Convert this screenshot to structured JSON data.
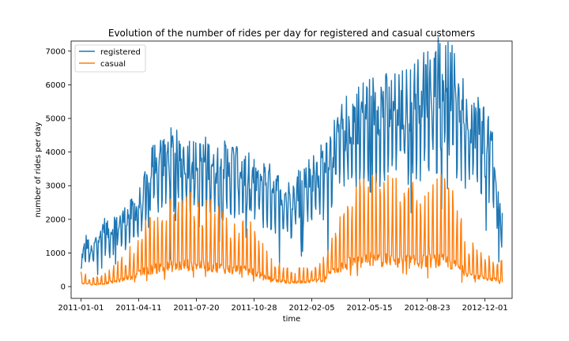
{
  "chart_data": {
    "type": "line",
    "title": "Evolution of the number of rides per day for registered and casual customers",
    "xlabel": "time",
    "ylabel": "number of rides per day",
    "x_start": "2011-01-01",
    "x_end": "2012-12-31",
    "xlim": [
      "2010-12-15",
      "2013-01-17"
    ],
    "ylim": [
      -350,
      7300
    ],
    "grid": false,
    "legend_position": "upper-left",
    "x_ticks": [
      "2011-01-01",
      "2011-04-11",
      "2011-07-20",
      "2011-10-28",
      "2012-02-05",
      "2012-05-15",
      "2012-08-23",
      "2012-12-01"
    ],
    "y_ticks": [
      0,
      1000,
      2000,
      3000,
      4000,
      5000,
      6000,
      7000
    ],
    "series": [
      {
        "name": "registered",
        "color": "#1f77b4",
        "points": [
          [
            "2011-01-01",
            700
          ],
          [
            "2011-01-10",
            1200
          ],
          [
            "2011-01-20",
            900
          ],
          [
            "2011-01-31",
            1400
          ],
          [
            "2011-02-10",
            1600
          ],
          [
            "2011-02-20",
            1400
          ],
          [
            "2011-03-01",
            1700
          ],
          [
            "2011-03-15",
            1800
          ],
          [
            "2011-03-31",
            2000
          ],
          [
            "2011-04-11",
            2200
          ],
          [
            "2011-04-25",
            2700
          ],
          [
            "2011-05-05",
            3400
          ],
          [
            "2011-05-20",
            3500
          ],
          [
            "2011-06-05",
            3600
          ],
          [
            "2011-06-20",
            3500
          ],
          [
            "2011-07-05",
            3500
          ],
          [
            "2011-07-20",
            3300
          ],
          [
            "2011-08-05",
            3400
          ],
          [
            "2011-08-20",
            3300
          ],
          [
            "2011-09-05",
            3300
          ],
          [
            "2011-09-20",
            3300
          ],
          [
            "2011-10-05",
            3200
          ],
          [
            "2011-10-28",
            2900
          ],
          [
            "2011-11-15",
            2900
          ],
          [
            "2011-12-01",
            2700
          ],
          [
            "2011-12-15",
            2500
          ],
          [
            "2011-12-31",
            2400
          ],
          [
            "2012-01-15",
            2800
          ],
          [
            "2012-02-05",
            3000
          ],
          [
            "2012-02-20",
            3200
          ],
          [
            "2012-03-10",
            3700
          ],
          [
            "2012-03-25",
            4200
          ],
          [
            "2012-04-10",
            4400
          ],
          [
            "2012-04-25",
            4600
          ],
          [
            "2012-05-15",
            4800
          ],
          [
            "2012-06-01",
            4900
          ],
          [
            "2012-06-20",
            4800
          ],
          [
            "2012-07-10",
            4900
          ],
          [
            "2012-07-25",
            5000
          ],
          [
            "2012-08-10",
            5300
          ],
          [
            "2012-08-23",
            5400
          ],
          [
            "2012-09-10",
            5700
          ],
          [
            "2012-09-25",
            5700
          ],
          [
            "2012-10-10",
            5300
          ],
          [
            "2012-10-25",
            4900
          ],
          [
            "2012-11-10",
            4500
          ],
          [
            "2012-11-25",
            4300
          ],
          [
            "2012-12-10",
            4000
          ],
          [
            "2012-12-20",
            2700
          ],
          [
            "2012-12-31",
            1700
          ]
        ]
      },
      {
        "name": "casual",
        "color": "#ff7f0e",
        "points": [
          [
            "2011-01-01",
            200
          ],
          [
            "2011-01-20",
            100
          ],
          [
            "2011-02-10",
            150
          ],
          [
            "2011-03-01",
            250
          ],
          [
            "2011-03-20",
            400
          ],
          [
            "2011-04-11",
            600
          ],
          [
            "2011-04-25",
            800
          ],
          [
            "2011-05-15",
            900
          ],
          [
            "2011-06-05",
            1000
          ],
          [
            "2011-06-25",
            1050
          ],
          [
            "2011-07-20",
            1100
          ],
          [
            "2011-08-10",
            1000
          ],
          [
            "2011-08-30",
            950
          ],
          [
            "2011-09-20",
            800
          ],
          [
            "2011-10-10",
            800
          ],
          [
            "2011-10-28",
            700
          ],
          [
            "2011-11-15",
            450
          ],
          [
            "2011-12-05",
            300
          ],
          [
            "2011-12-31",
            200
          ],
          [
            "2012-01-20",
            250
          ],
          [
            "2012-02-05",
            250
          ],
          [
            "2012-02-25",
            350
          ],
          [
            "2012-03-15",
            800
          ],
          [
            "2012-04-05",
            1100
          ],
          [
            "2012-04-25",
            1200
          ],
          [
            "2012-05-15",
            1350
          ],
          [
            "2012-06-05",
            1300
          ],
          [
            "2012-06-25",
            1250
          ],
          [
            "2012-07-15",
            1250
          ],
          [
            "2012-08-05",
            1200
          ],
          [
            "2012-08-23",
            1250
          ],
          [
            "2012-09-10",
            1300
          ],
          [
            "2012-09-30",
            1200
          ],
          [
            "2012-10-15",
            950
          ],
          [
            "2012-11-05",
            600
          ],
          [
            "2012-11-25",
            450
          ],
          [
            "2012-12-15",
            350
          ],
          [
            "2012-12-31",
            300
          ]
        ]
      }
    ]
  }
}
